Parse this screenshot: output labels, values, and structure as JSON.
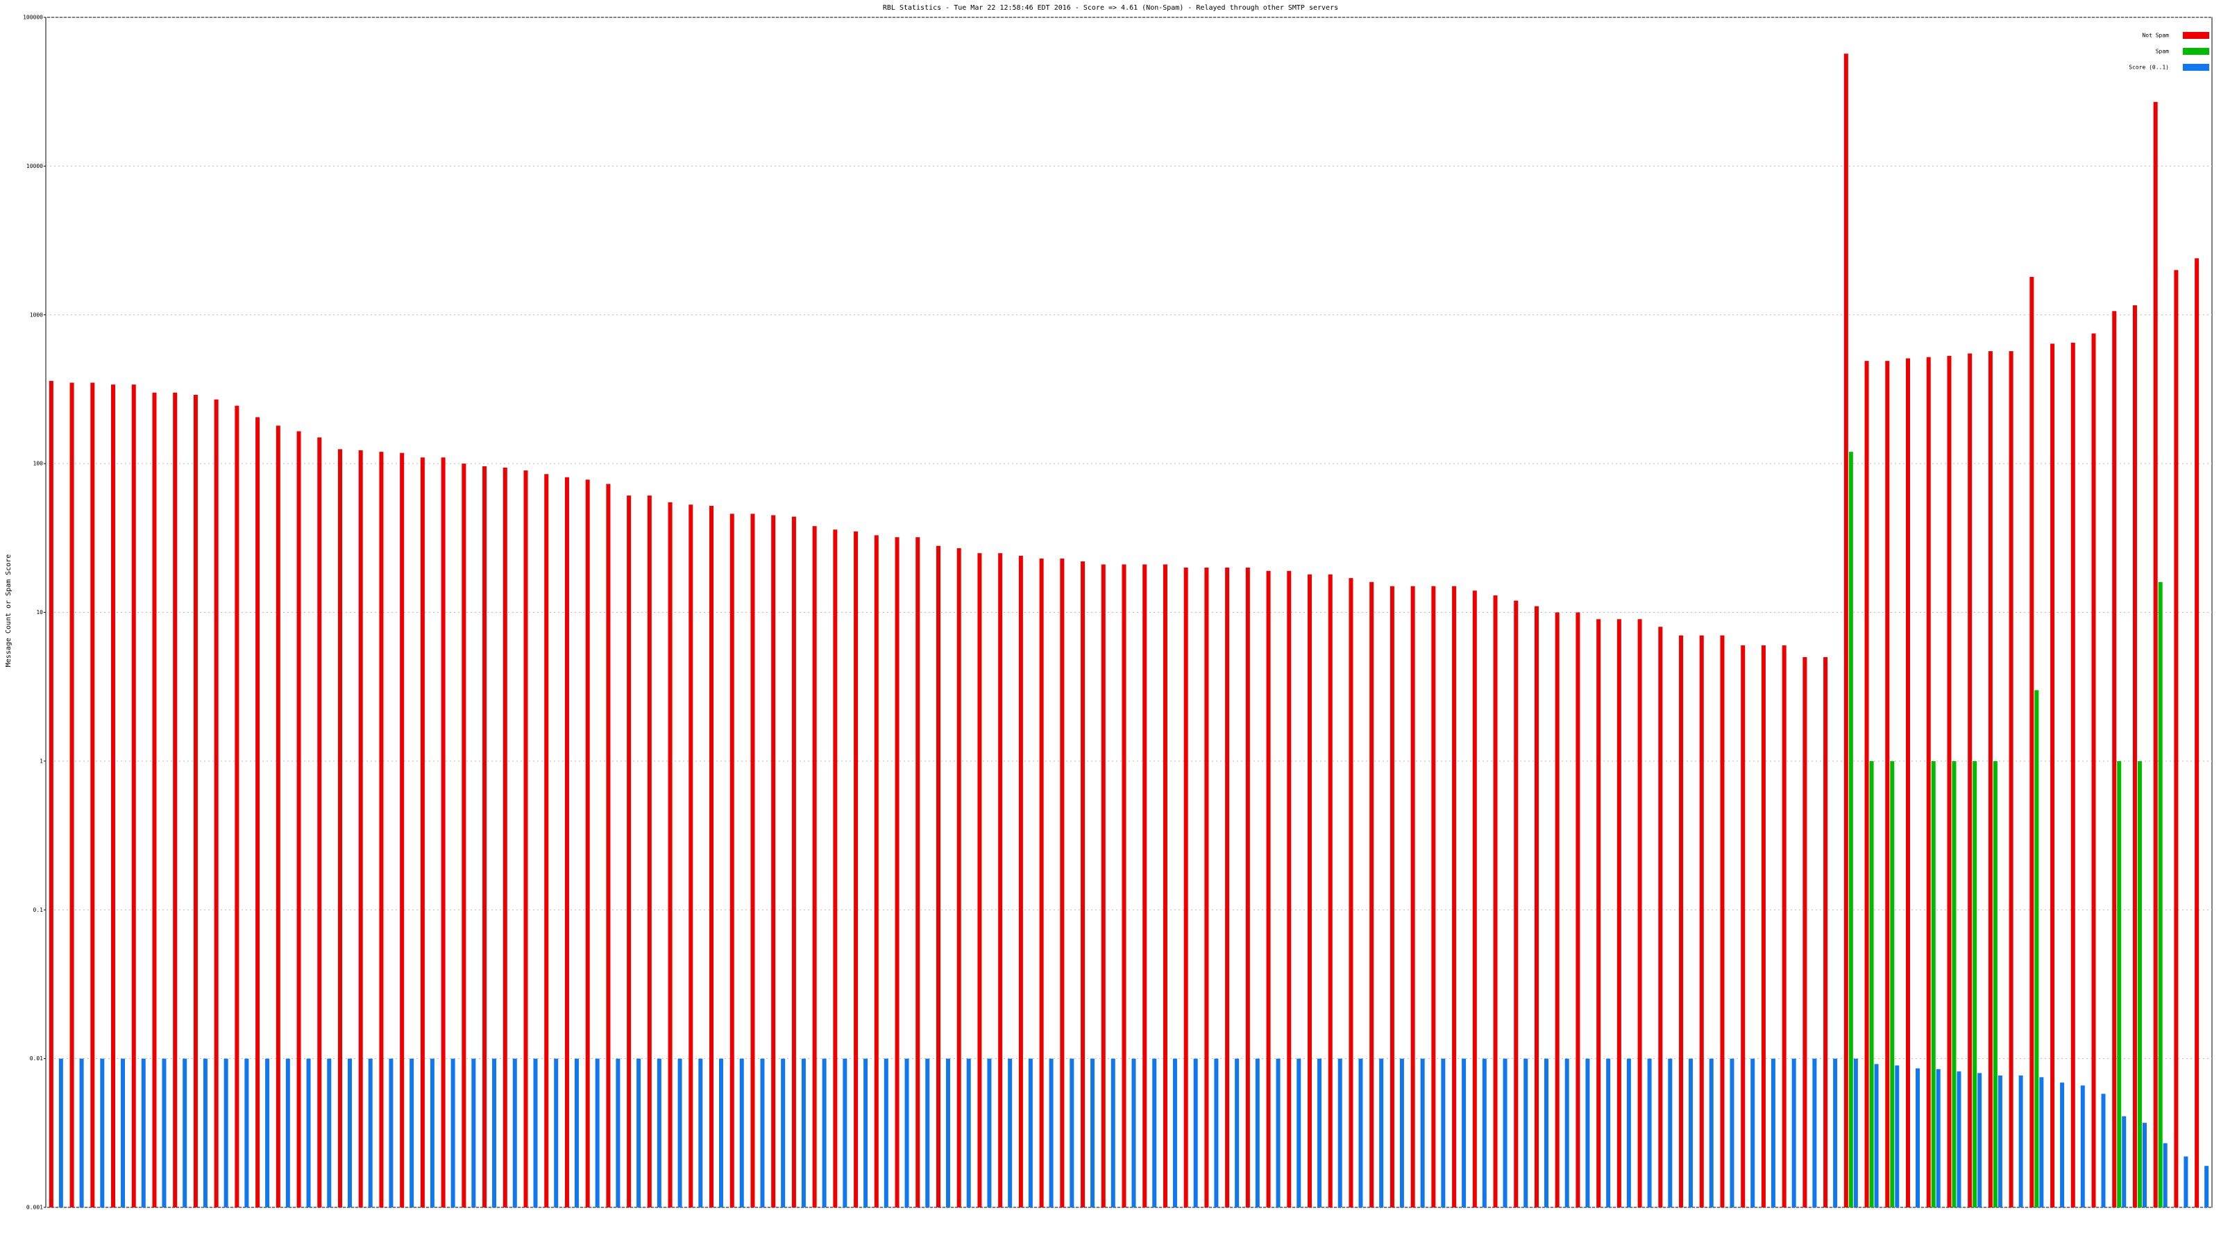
{
  "chart_data": {
    "type": "bar",
    "title": "RBL Statistics - Tue Mar 22 12:58:46 EDT 2016 - Score => 4.61 (Non-Spam) - Relayed through other SMTP servers",
    "y_label": "Message Count or Spam Score",
    "log_scale": true,
    "grid": true,
    "legend": "top-right",
    "ylim": [
      0.001,
      100000
    ],
    "yticks": [
      0.001,
      0.01,
      0.1,
      1,
      10,
      100,
      1000,
      10000,
      100000
    ],
    "categories": [
      null,
      null,
      null,
      null,
      null,
      null,
      null,
      null,
      null,
      null,
      null,
      null,
      null,
      null,
      null,
      null,
      null,
      null,
      null,
      null,
      null,
      null,
      null,
      null,
      null,
      null,
      null,
      null,
      null,
      null,
      null,
      null,
      null,
      null,
      null,
      null,
      null,
      null,
      null,
      null,
      null,
      null,
      null,
      null,
      null,
      null,
      null,
      null,
      null,
      null,
      null,
      null,
      null,
      null,
      null,
      null,
      null,
      null,
      null,
      null,
      null,
      null,
      null,
      null,
      null,
      null,
      null,
      null,
      null,
      null,
      null,
      null,
      null,
      null,
      null,
      null,
      null,
      null,
      null,
      null,
      null,
      null,
      null,
      null,
      null,
      null,
      null,
      null,
      null,
      null,
      null,
      null,
      null,
      null,
      null,
      null,
      null,
      null,
      null,
      null,
      null,
      null,
      null,
      null,
      null
    ],
    "series": [
      {
        "name": "Not Spam",
        "color": "#ee0000",
        "values": [
          360,
          350,
          350,
          340,
          340,
          300,
          300,
          290,
          270,
          245,
          205,
          180,
          165,
          150,
          125,
          123,
          120,
          118,
          110,
          110,
          100,
          96,
          94,
          90,
          85,
          81,
          78,
          73,
          61,
          61,
          55,
          53,
          52,
          46,
          46,
          45,
          44,
          38,
          36,
          35,
          33,
          32,
          32,
          28,
          27,
          25,
          25,
          24,
          23,
          23,
          22,
          21,
          21,
          21,
          21,
          20,
          20,
          20,
          20,
          19,
          19,
          18,
          18,
          17,
          16,
          15,
          15,
          15,
          15,
          14,
          13,
          12,
          11,
          10,
          10,
          9,
          9,
          9,
          8,
          7,
          7,
          7,
          6,
          6,
          6,
          5,
          5,
          57000,
          490,
          490,
          510,
          520,
          530,
          550,
          570,
          570,
          1800,
          640,
          650,
          750,
          1060,
          1160,
          27000,
          2000,
          2400
        ]
      },
      {
        "name": "Spam",
        "color": "#00bb00",
        "values": [
          null,
          null,
          null,
          null,
          null,
          null,
          null,
          null,
          null,
          null,
          null,
          null,
          null,
          null,
          null,
          null,
          null,
          null,
          null,
          null,
          null,
          null,
          null,
          null,
          null,
          null,
          null,
          null,
          null,
          null,
          null,
          null,
          null,
          null,
          null,
          null,
          null,
          null,
          null,
          null,
          null,
          null,
          null,
          null,
          null,
          null,
          null,
          null,
          null,
          null,
          null,
          null,
          null,
          null,
          null,
          null,
          null,
          null,
          null,
          null,
          null,
          null,
          null,
          null,
          null,
          null,
          null,
          null,
          null,
          null,
          null,
          null,
          null,
          null,
          null,
          null,
          null,
          null,
          null,
          null,
          null,
          null,
          null,
          null,
          null,
          null,
          null,
          120,
          1,
          1,
          null,
          1,
          1,
          1,
          1,
          null,
          3,
          null,
          null,
          null,
          1,
          1,
          16,
          null,
          null
        ]
      },
      {
        "name": "Score (0..1)",
        "color": "#1177ee",
        "values": [
          0.01,
          0.01,
          0.01,
          0.01,
          0.01,
          0.01,
          0.01,
          0.01,
          0.01,
          0.01,
          0.01,
          0.01,
          0.01,
          0.01,
          0.01,
          0.01,
          0.01,
          0.01,
          0.01,
          0.01,
          0.01,
          0.01,
          0.01,
          0.01,
          0.01,
          0.01,
          0.01,
          0.01,
          0.01,
          0.01,
          0.01,
          0.01,
          0.01,
          0.01,
          0.01,
          0.01,
          0.01,
          0.01,
          0.01,
          0.01,
          0.01,
          0.01,
          0.01,
          0.01,
          0.01,
          0.01,
          0.01,
          0.01,
          0.01,
          0.01,
          0.01,
          0.01,
          0.01,
          0.01,
          0.01,
          0.01,
          0.01,
          0.01,
          0.01,
          0.01,
          0.01,
          0.01,
          0.01,
          0.01,
          0.01,
          0.01,
          0.01,
          0.01,
          0.01,
          0.01,
          0.01,
          0.01,
          0.01,
          0.01,
          0.01,
          0.01,
          0.01,
          0.01,
          0.01,
          0.01,
          0.01,
          0.01,
          0.01,
          0.01,
          0.01,
          0.01,
          0.01,
          0.01,
          0.0092,
          0.009,
          0.0086,
          0.0085,
          0.0082,
          0.008,
          0.0077,
          0.0077,
          0.0075,
          0.0069,
          0.0066,
          0.0058,
          0.0041,
          0.0037,
          0.0027,
          0.0022,
          0.0019
        ]
      }
    ]
  }
}
